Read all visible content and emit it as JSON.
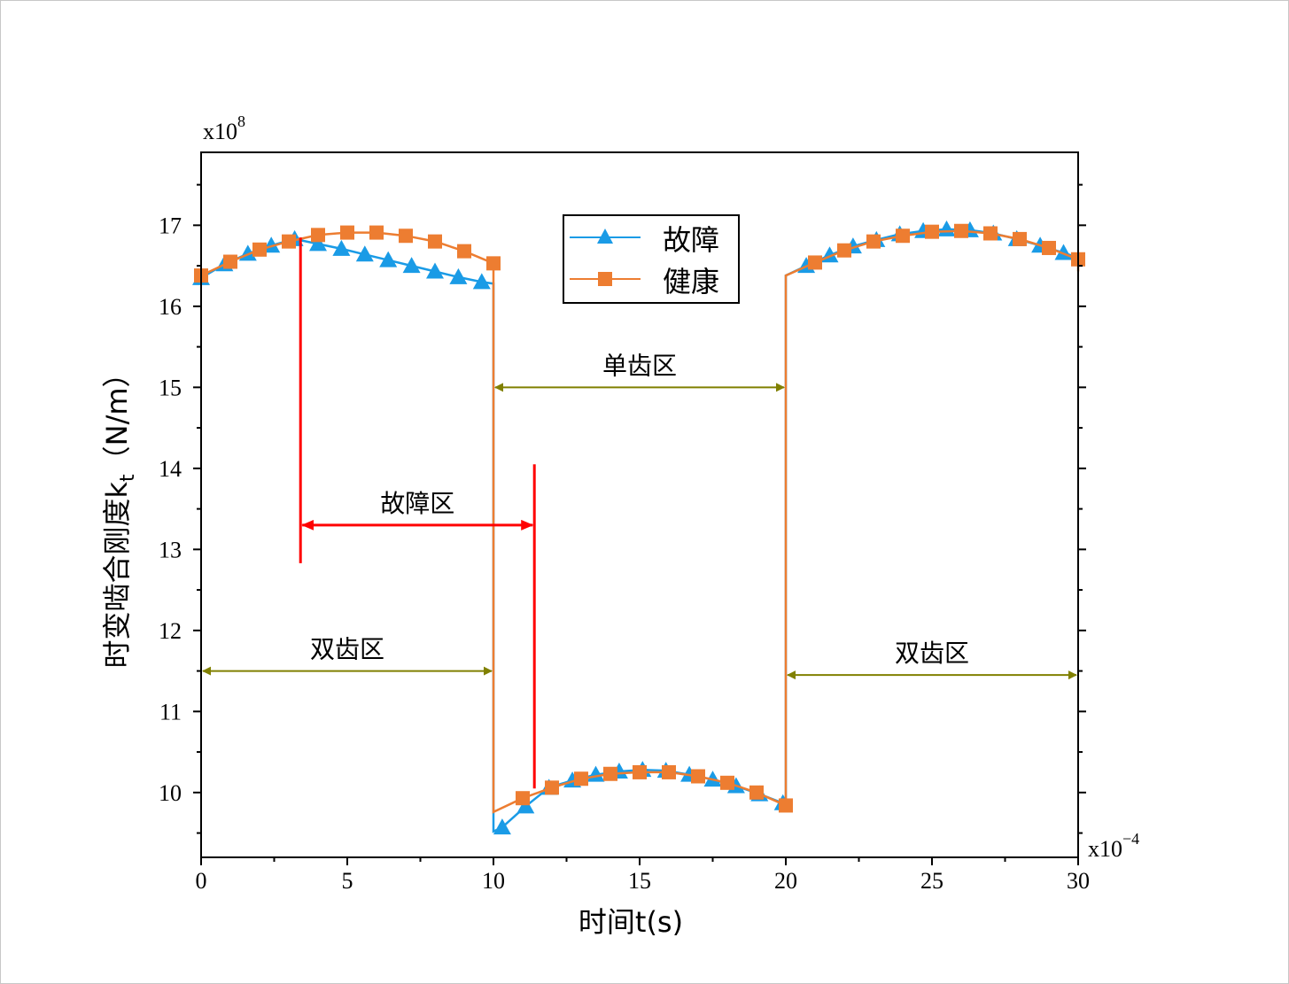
{
  "chart_data": {
    "type": "line",
    "xlabel": "时间t(s)",
    "ylabel": "时变啮合刚度k",
    "ylabel_sub": "t",
    "ylabel_unit": "（N/m）",
    "x_multiplier": "x10",
    "x_multiplier_exp": "−4",
    "y_multiplier": "x10",
    "y_multiplier_exp": "8",
    "xlim": [
      0,
      30
    ],
    "ylim": [
      9.2,
      17.9
    ],
    "xticks": [
      0,
      5,
      10,
      15,
      20,
      25,
      30
    ],
    "yticks": [
      10,
      11,
      12,
      13,
      14,
      15,
      16,
      17
    ],
    "grid": false,
    "legend_position": "top-center",
    "series": [
      {
        "name": "故障",
        "color": "#1a9be6",
        "marker": "triangle",
        "x": [
          0,
          0.8,
          1.6,
          2.4,
          3.2,
          4.0,
          4.8,
          5.6,
          6.4,
          7.2,
          8.0,
          8.8,
          9.6,
          10,
          10,
          10.3,
          11.1,
          11.9,
          12.7,
          13.5,
          14.3,
          15.1,
          15.9,
          16.7,
          17.5,
          18.3,
          19.1,
          19.9,
          20,
          20,
          20.7,
          21.5,
          22.3,
          23.1,
          23.9,
          24.7,
          25.5,
          26.3,
          27.1,
          27.9,
          28.7,
          29.5,
          30
        ],
        "y": [
          16.35,
          16.52,
          16.65,
          16.75,
          16.83,
          16.77,
          16.71,
          16.64,
          16.57,
          16.5,
          16.43,
          16.36,
          16.3,
          16.28,
          9.52,
          9.57,
          9.83,
          10.06,
          10.15,
          10.22,
          10.26,
          10.28,
          10.27,
          10.22,
          10.16,
          10.08,
          9.98,
          9.87,
          9.85,
          16.38,
          16.5,
          16.63,
          16.74,
          16.82,
          16.89,
          16.93,
          16.95,
          16.94,
          16.9,
          16.83,
          16.75,
          16.66,
          16.6
        ],
        "marker_x": [
          0,
          0.8,
          1.6,
          2.4,
          3.2,
          4.0,
          4.8,
          5.6,
          6.4,
          7.2,
          8.0,
          8.8,
          9.6,
          10.3,
          11.1,
          11.9,
          12.7,
          13.5,
          14.3,
          15.1,
          15.9,
          16.7,
          17.5,
          18.3,
          19.1,
          19.9,
          20.7,
          21.5,
          22.3,
          23.1,
          23.9,
          24.7,
          25.5,
          26.3,
          27.1,
          27.9,
          28.7,
          29.5
        ]
      },
      {
        "name": "健康",
        "color": "#ed7d31",
        "marker": "square",
        "x": [
          0,
          1,
          2,
          3,
          4,
          5,
          6,
          7,
          8,
          9,
          10,
          10,
          11,
          12,
          13,
          14,
          15,
          16,
          17,
          18,
          19,
          20,
          20,
          21,
          22,
          23,
          24,
          25,
          26,
          27,
          28,
          29,
          30,
          30
        ],
        "y": [
          16.38,
          16.55,
          16.7,
          16.8,
          16.88,
          16.91,
          16.91,
          16.87,
          16.8,
          16.68,
          16.53,
          9.76,
          9.93,
          10.06,
          10.17,
          10.23,
          10.25,
          10.25,
          10.2,
          10.12,
          10.0,
          9.84,
          16.38,
          16.54,
          16.69,
          16.8,
          16.87,
          16.92,
          16.93,
          16.9,
          16.83,
          16.72,
          16.58,
          16.43
        ],
        "marker_x": [
          0,
          1,
          2,
          3,
          4,
          5,
          6,
          7,
          8,
          9,
          10,
          11,
          12,
          13,
          14,
          15,
          16,
          17,
          18,
          19,
          20,
          21,
          22,
          23,
          24,
          25,
          26,
          27,
          28,
          29,
          30
        ]
      }
    ],
    "annotations": [
      {
        "text": "双齿区",
        "x_from": 0,
        "x_to": 10,
        "y": 11.5,
        "color": "#808000"
      },
      {
        "text": "单齿区",
        "x_from": 10,
        "x_to": 20,
        "y": 15.0,
        "color": "#808000"
      },
      {
        "text": "双齿区",
        "x_from": 20,
        "x_to": 30,
        "y": 11.45,
        "color": "#808000"
      },
      {
        "text": "故障区",
        "x_from": 3.4,
        "x_to": 11.4,
        "y": 13.3,
        "color": "#ff0000"
      }
    ],
    "markers_lines": [
      {
        "x": 3.4,
        "y_from": 12.83,
        "y_to": 16.85,
        "color": "#ff0000"
      },
      {
        "x": 11.4,
        "y_from": 10.05,
        "y_to": 14.05,
        "color": "#ff0000"
      }
    ]
  }
}
